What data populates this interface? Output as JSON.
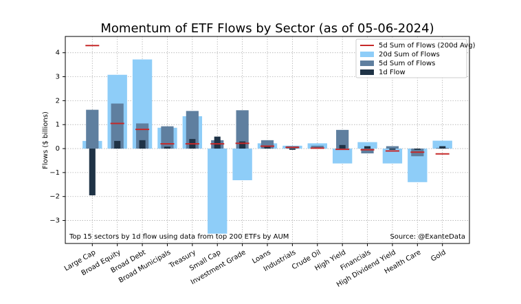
{
  "chart_data": {
    "type": "bar",
    "title": "Momentum of ETF Flows by Sector (as of 05-06-2024)",
    "y_label": "Flows ($ billions)",
    "annotations": [
      "Top 15 sectors by 1d flow using data from top 200 ETFs by AUM",
      "Source: @ExanteData"
    ],
    "categories": [
      "Large Cap",
      "Broad Equity",
      "Broad Debt",
      "Broad Municipals",
      "Treasury",
      "Small Cap",
      "Investment Grade",
      "Loans",
      "Industrials",
      "Crude Oil",
      "High Yield",
      "Financials",
      "High Dividend Yield",
      "Health Care",
      "Gold"
    ],
    "category_colors": [
      "#000000",
      "#000000",
      "#6a8caf",
      "#6a8caf",
      "#6a8caf",
      "#000000",
      "#6a8caf",
      "#6a8caf",
      "#000000",
      "#228b22",
      "#6a8caf",
      "#000000",
      "#000000",
      "#000000",
      "#228b22"
    ],
    "series": [
      {
        "name": "5d Sum of Flows (200d Avg)",
        "color": "#c62828",
        "style": "hline",
        "values": [
          4.3,
          1.05,
          0.8,
          0.2,
          0.2,
          0.2,
          0.22,
          0.1,
          0.05,
          0.02,
          -0.03,
          -0.05,
          -0.1,
          -0.15,
          -0.22
        ]
      },
      {
        "name": "20d Sum of Flows",
        "color": "#8ecdf8",
        "style": "bar",
        "values": [
          0.32,
          3.08,
          3.72,
          0.87,
          1.35,
          -3.55,
          -1.32,
          0.22,
          0.12,
          0.22,
          -0.62,
          0.27,
          -0.62,
          -1.4,
          0.33
        ]
      },
      {
        "name": "5d Sum of Flows",
        "color": "#5f7f9f",
        "style": "bar",
        "values": [
          1.62,
          1.88,
          1.05,
          0.93,
          1.57,
          0.35,
          1.6,
          0.35,
          0.1,
          0.12,
          0.78,
          -0.2,
          0.1,
          -0.32,
          0.03
        ]
      },
      {
        "name": "1d Flow",
        "color": "#1f3346",
        "style": "bar",
        "values": [
          -1.95,
          0.32,
          0.35,
          0.08,
          0.4,
          0.5,
          0.3,
          0.1,
          -0.05,
          0.05,
          0.15,
          0.1,
          -0.05,
          -0.05,
          0.1
        ]
      }
    ],
    "ylim": [
      -3.96,
      4.68
    ],
    "yticks": [
      {
        "value": -3,
        "label": "−3"
      },
      {
        "value": -2,
        "label": "−2"
      },
      {
        "value": -1,
        "label": "−1"
      },
      0,
      1,
      2,
      3,
      4
    ],
    "grid": true,
    "legend": "upper right"
  }
}
